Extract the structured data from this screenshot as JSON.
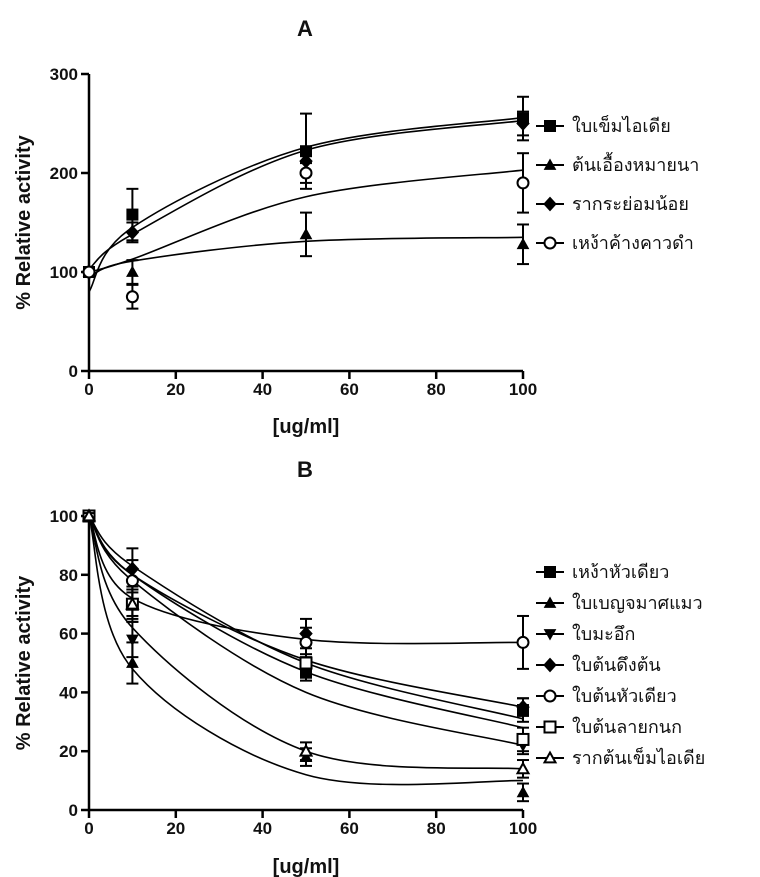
{
  "chart_data": [
    {
      "type": "scatter",
      "title": "A",
      "xlabel": "[ug/ml]",
      "ylabel": "% Relative activity",
      "xlim": [
        0,
        100
      ],
      "ylim": [
        0,
        300
      ],
      "xticks": [
        0,
        20,
        40,
        60,
        80,
        100
      ],
      "yticks": [
        0,
        100,
        200,
        300
      ],
      "legend_position": "right",
      "x": [
        0,
        10,
        50,
        100
      ],
      "series": [
        {
          "name": "ใบเข็มไอเดีย",
          "marker": "filled-square",
          "values": [
            100,
            158,
            222,
            255
          ],
          "errors": [
            4,
            26,
            38,
            22
          ],
          "fit_curve": [
            80,
            145,
            226,
            256
          ]
        },
        {
          "name": "ต้นเอื้องหมายนา",
          "marker": "filled-triangle",
          "values": [
            100,
            100,
            138,
            128
          ],
          "errors": [
            4,
            12,
            22,
            20
          ],
          "fit_curve": [
            95,
            111,
            131,
            135
          ]
        },
        {
          "name": "รากระย่อมน้อย",
          "marker": "filled-diamond",
          "values": [
            100,
            140,
            212,
            250
          ],
          "errors": [
            4,
            10,
            14,
            12
          ],
          "fit_curve": [
            103,
            138,
            223,
            253
          ]
        },
        {
          "name": "เหง้าค้างคาวดำ",
          "marker": "open-circle",
          "values": [
            100,
            75,
            200,
            190
          ],
          "errors": [
            4,
            12,
            10,
            30
          ],
          "fit_curve": [
            100,
            113,
            176,
            203
          ]
        }
      ]
    },
    {
      "type": "scatter",
      "title": "B",
      "xlabel": "[ug/ml]",
      "ylabel": "% Relative activity",
      "xlim": [
        0,
        100
      ],
      "ylim": [
        0,
        100
      ],
      "xticks": [
        0,
        20,
        40,
        60,
        80,
        100
      ],
      "yticks": [
        0,
        20,
        40,
        60,
        80,
        100
      ],
      "legend_position": "right",
      "x": [
        0,
        10,
        50,
        100
      ],
      "series": [
        {
          "name": "เหง้าหัวเดียว",
          "marker": "filled-square",
          "values": [
            100,
            70,
            47,
            34
          ],
          "errors": [
            1,
            4,
            3,
            4
          ],
          "fit_curve": [
            100,
            80,
            51,
            35
          ]
        },
        {
          "name": "ใบเบญจมาศแมว",
          "marker": "filled-triangle",
          "values": [
            100,
            50,
            18,
            6
          ],
          "errors": [
            1,
            7,
            3,
            3
          ],
          "fit_curve": [
            100,
            48,
            12,
            10
          ]
        },
        {
          "name": "ใบมะอึก",
          "marker": "filled-down-triangle",
          "values": [
            100,
            58,
            48,
            22
          ],
          "errors": [
            1,
            6,
            3,
            3
          ],
          "fit_curve": [
            100,
            78,
            40,
            22
          ]
        },
        {
          "name": "ใบต้นดึงต้น",
          "marker": "filled-diamond",
          "values": [
            100,
            82,
            60,
            35
          ],
          "errors": [
            1,
            7,
            5,
            3
          ],
          "fit_curve": [
            100,
            83,
            50,
            31
          ]
        },
        {
          "name": "ใบต้นหัวเดียว",
          "marker": "open-circle",
          "values": [
            100,
            78,
            57,
            57
          ],
          "errors": [
            1,
            7,
            5,
            9
          ],
          "fit_curve": [
            100,
            72,
            58,
            57
          ]
        },
        {
          "name": "ใบต้นลายกนก",
          "marker": "open-square",
          "values": [
            100,
            70,
            50,
            24
          ],
          "errors": [
            1,
            5,
            3,
            4
          ],
          "fit_curve": [
            100,
            80,
            47,
            28
          ]
        },
        {
          "name": "รากต้นเข็มไอเดีย",
          "marker": "open-triangle",
          "values": [
            100,
            70,
            20,
            14
          ],
          "errors": [
            1,
            6,
            3,
            3
          ],
          "fit_curve": [
            100,
            62,
            20,
            14
          ]
        }
      ]
    }
  ]
}
